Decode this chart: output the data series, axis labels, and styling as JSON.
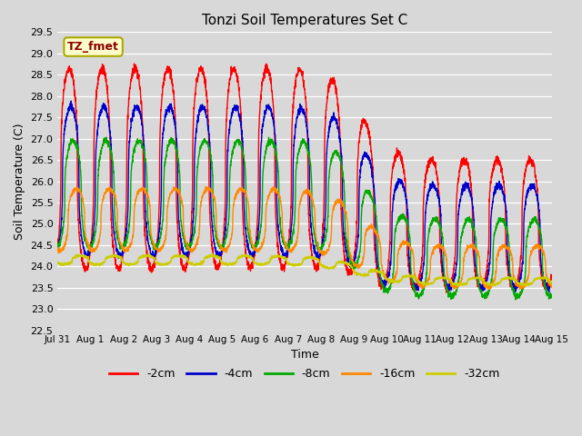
{
  "title": "Tonzi Soil Temperatures Set C",
  "xlabel": "Time",
  "ylabel": "Soil Temperature (C)",
  "ylim": [
    22.5,
    29.5
  ],
  "xlim": [
    0,
    15
  ],
  "xtick_labels": [
    "Jul 31",
    "Aug 1",
    "Aug 2",
    "Aug 3",
    "Aug 4",
    "Aug 5",
    "Aug 6",
    "Aug 7",
    "Aug 8",
    "Aug 9",
    "Aug 10",
    "Aug 11",
    "Aug 12",
    "Aug 13",
    "Aug 14",
    "Aug 15"
  ],
  "ytick_values": [
    22.5,
    23.0,
    23.5,
    24.0,
    24.5,
    25.0,
    25.5,
    26.0,
    26.5,
    27.0,
    27.5,
    28.0,
    28.5,
    29.0,
    29.5
  ],
  "label_annotation": "TZ_fmet",
  "background_color": "#d8d8d8",
  "grid_color": "#ffffff",
  "legend_entries": [
    "-2cm",
    "-4cm",
    "-8cm",
    "-16cm",
    "-32cm"
  ],
  "series_colors": [
    "#ff0000",
    "#0000cc",
    "#00aa00",
    "#ff8800",
    "#cccc00"
  ],
  "series_linewidth": 1.0
}
